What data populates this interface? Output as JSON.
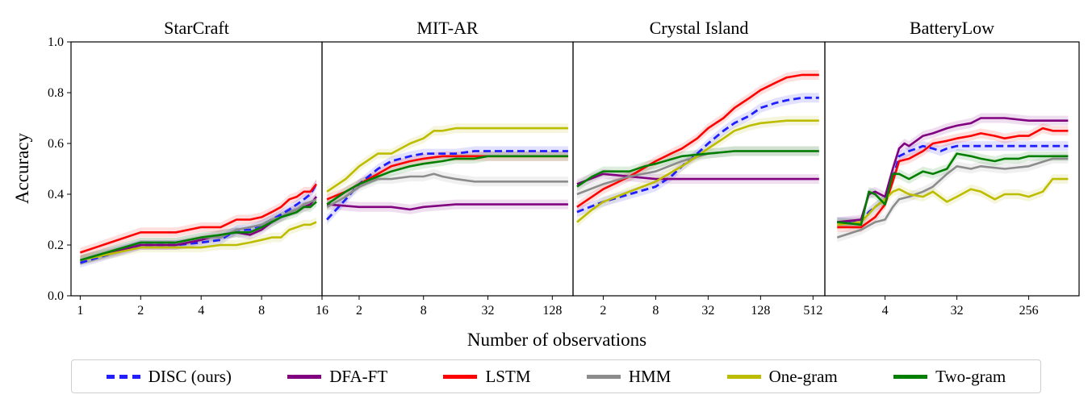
{
  "figure": {
    "xlabel": "Number of observations",
    "ylabel": "Accuracy"
  },
  "legend": {
    "items": [
      {
        "label": "DISC (ours)",
        "color": "#1f1fff",
        "dashed": true
      },
      {
        "label": "DFA-FT",
        "color": "#800080",
        "dashed": false
      },
      {
        "label": "LSTM",
        "color": "#ff0000",
        "dashed": false
      },
      {
        "label": "HMM",
        "color": "#8c8c8c",
        "dashed": false
      },
      {
        "label": "One-gram",
        "color": "#bdbd00",
        "dashed": false
      },
      {
        "label": "Two-gram",
        "color": "#007f00",
        "dashed": false
      }
    ]
  },
  "chart_data": [
    {
      "type": "line",
      "title": "StarCraft",
      "xscale": "log2",
      "xlim": [
        0.9,
        16
      ],
      "ylim": [
        0.0,
        1.0
      ],
      "xticks": [
        1,
        2,
        4,
        8,
        16
      ],
      "xticklabels": [
        "1",
        "2",
        "4",
        "8",
        "16"
      ],
      "yticks": [
        0.0,
        0.2,
        0.4,
        0.6,
        0.8,
        1.0
      ],
      "yticklabels": [
        "0.0",
        "0.2",
        "0.4",
        "0.6",
        "0.8",
        "1.0"
      ],
      "series": [
        {
          "name": "DISC (ours)",
          "x": [
            1,
            2,
            3,
            4,
            5,
            6,
            7,
            8,
            9,
            10,
            11,
            12,
            13,
            14,
            15
          ],
          "y": [
            0.13,
            0.2,
            0.2,
            0.21,
            0.22,
            0.26,
            0.26,
            0.28,
            0.3,
            0.32,
            0.34,
            0.36,
            0.38,
            0.4,
            0.44
          ]
        },
        {
          "name": "DFA-FT",
          "x": [
            1,
            2,
            3,
            4,
            5,
            6,
            7,
            8,
            9,
            10,
            11,
            12,
            13,
            14,
            15
          ],
          "y": [
            0.14,
            0.2,
            0.2,
            0.22,
            0.24,
            0.25,
            0.24,
            0.26,
            0.29,
            0.31,
            0.33,
            0.34,
            0.35,
            0.36,
            0.39
          ]
        },
        {
          "name": "LSTM",
          "x": [
            1,
            2,
            3,
            4,
            5,
            6,
            7,
            8,
            9,
            10,
            11,
            12,
            13,
            14,
            15
          ],
          "y": [
            0.17,
            0.25,
            0.25,
            0.27,
            0.27,
            0.3,
            0.3,
            0.31,
            0.33,
            0.35,
            0.38,
            0.39,
            0.41,
            0.41,
            0.44
          ]
        },
        {
          "name": "HMM",
          "x": [
            1,
            2,
            3,
            4,
            5,
            6,
            7,
            8,
            9,
            10,
            11,
            12,
            13,
            14,
            15
          ],
          "y": [
            0.14,
            0.21,
            0.21,
            0.23,
            0.23,
            0.26,
            0.27,
            0.28,
            0.3,
            0.31,
            0.33,
            0.34,
            0.36,
            0.37,
            0.38
          ]
        },
        {
          "name": "One-gram",
          "x": [
            1,
            2,
            3,
            4,
            5,
            6,
            7,
            8,
            9,
            10,
            11,
            12,
            13,
            14,
            15
          ],
          "y": [
            0.14,
            0.19,
            0.19,
            0.19,
            0.2,
            0.2,
            0.21,
            0.22,
            0.23,
            0.23,
            0.26,
            0.27,
            0.28,
            0.28,
            0.29
          ]
        },
        {
          "name": "Two-gram",
          "x": [
            1,
            2,
            3,
            4,
            5,
            6,
            7,
            8,
            9,
            10,
            11,
            12,
            13,
            14,
            15
          ],
          "y": [
            0.14,
            0.21,
            0.21,
            0.23,
            0.24,
            0.25,
            0.25,
            0.27,
            0.29,
            0.31,
            0.32,
            0.33,
            0.35,
            0.35,
            0.37
          ]
        }
      ]
    },
    {
      "type": "line",
      "title": "MIT-AR",
      "xscale": "log2",
      "xlim": [
        0.9,
        200
      ],
      "ylim": [
        0.0,
        1.0
      ],
      "xticks": [
        2,
        8,
        32,
        128
      ],
      "xticklabels": [
        "2",
        "8",
        "32",
        "128"
      ],
      "series": [
        {
          "name": "DISC (ours)",
          "x": [
            1,
            1.5,
            2,
            3,
            4,
            6,
            8,
            12,
            16,
            24,
            32,
            48,
            64,
            96,
            128,
            180
          ],
          "y": [
            0.3,
            0.38,
            0.44,
            0.5,
            0.53,
            0.55,
            0.56,
            0.56,
            0.56,
            0.57,
            0.57,
            0.57,
            0.57,
            0.57,
            0.57,
            0.57
          ]
        },
        {
          "name": "DFA-FT",
          "x": [
            1,
            2,
            4,
            6,
            8,
            16,
            32,
            64,
            128,
            180
          ],
          "y": [
            0.36,
            0.35,
            0.35,
            0.34,
            0.35,
            0.36,
            0.36,
            0.36,
            0.36,
            0.36
          ]
        },
        {
          "name": "LSTM",
          "x": [
            1,
            1.5,
            2,
            3,
            4,
            6,
            8,
            12,
            16,
            24,
            32,
            64,
            128,
            180
          ],
          "y": [
            0.38,
            0.41,
            0.44,
            0.48,
            0.51,
            0.53,
            0.54,
            0.55,
            0.55,
            0.55,
            0.55,
            0.55,
            0.55,
            0.55
          ]
        },
        {
          "name": "HMM",
          "x": [
            1,
            1.5,
            2,
            3,
            4,
            6,
            8,
            10,
            12,
            16,
            24,
            32,
            64,
            128,
            180
          ],
          "y": [
            0.35,
            0.39,
            0.43,
            0.46,
            0.46,
            0.47,
            0.47,
            0.48,
            0.47,
            0.46,
            0.45,
            0.45,
            0.45,
            0.45,
            0.45
          ]
        },
        {
          "name": "One-gram",
          "x": [
            1,
            1.5,
            2,
            3,
            4,
            6,
            8,
            10,
            12,
            16,
            24,
            32,
            64,
            128,
            180
          ],
          "y": [
            0.41,
            0.46,
            0.51,
            0.56,
            0.56,
            0.6,
            0.62,
            0.65,
            0.65,
            0.66,
            0.66,
            0.66,
            0.66,
            0.66,
            0.66
          ]
        },
        {
          "name": "Two-gram",
          "x": [
            1,
            1.5,
            2,
            3,
            4,
            6,
            8,
            12,
            16,
            24,
            32,
            64,
            128,
            180
          ],
          "y": [
            0.36,
            0.41,
            0.44,
            0.47,
            0.49,
            0.51,
            0.52,
            0.53,
            0.54,
            0.54,
            0.55,
            0.55,
            0.55,
            0.55
          ]
        }
      ]
    },
    {
      "type": "line",
      "title": "Crystal Island",
      "xscale": "log2",
      "xlim": [
        0.9,
        700
      ],
      "ylim": [
        0.0,
        1.0
      ],
      "xticks": [
        2,
        8,
        32,
        128,
        512
      ],
      "xticklabels": [
        "2",
        "8",
        "32",
        "128",
        "512"
      ],
      "series": [
        {
          "name": "DISC (ours)",
          "x": [
            1,
            2,
            4,
            8,
            12,
            16,
            24,
            32,
            48,
            64,
            96,
            128,
            192,
            256,
            384,
            600
          ],
          "y": [
            0.33,
            0.37,
            0.4,
            0.43,
            0.47,
            0.51,
            0.56,
            0.6,
            0.65,
            0.68,
            0.71,
            0.74,
            0.76,
            0.77,
            0.78,
            0.78
          ]
        },
        {
          "name": "DFA-FT",
          "x": [
            1,
            2,
            4,
            8,
            16,
            32,
            64,
            128,
            256,
            600
          ],
          "y": [
            0.44,
            0.48,
            0.47,
            0.46,
            0.46,
            0.46,
            0.46,
            0.46,
            0.46,
            0.46
          ]
        },
        {
          "name": "LSTM",
          "x": [
            1,
            2,
            4,
            8,
            12,
            16,
            24,
            32,
            48,
            64,
            96,
            128,
            192,
            256,
            384,
            600
          ],
          "y": [
            0.35,
            0.42,
            0.47,
            0.53,
            0.56,
            0.58,
            0.62,
            0.66,
            0.7,
            0.74,
            0.78,
            0.81,
            0.84,
            0.86,
            0.87,
            0.87
          ]
        },
        {
          "name": "HMM",
          "x": [
            1,
            2,
            4,
            8,
            16,
            32,
            64,
            128,
            256,
            600
          ],
          "y": [
            0.4,
            0.44,
            0.47,
            0.49,
            0.53,
            0.56,
            0.57,
            0.57,
            0.57,
            0.57
          ]
        },
        {
          "name": "One-gram",
          "x": [
            1,
            1.5,
            2,
            4,
            8,
            16,
            24,
            32,
            48,
            64,
            96,
            128,
            256,
            600
          ],
          "y": [
            0.29,
            0.34,
            0.37,
            0.41,
            0.45,
            0.51,
            0.55,
            0.58,
            0.62,
            0.65,
            0.67,
            0.68,
            0.69,
            0.69
          ]
        },
        {
          "name": "Two-gram",
          "x": [
            1,
            1.5,
            2,
            3,
            4,
            6,
            8,
            16,
            32,
            64,
            128,
            256,
            600
          ],
          "y": [
            0.43,
            0.47,
            0.49,
            0.49,
            0.49,
            0.51,
            0.52,
            0.55,
            0.56,
            0.57,
            0.57,
            0.57,
            0.57
          ]
        }
      ]
    },
    {
      "type": "line",
      "title": "BatteryLow",
      "xscale": "log2",
      "xlim": [
        0.7,
        1100
      ],
      "ylim": [
        0.0,
        1.0
      ],
      "xticks": [
        4,
        32,
        256
      ],
      "xticklabels": [
        "4",
        "32",
        "256"
      ],
      "series": [
        {
          "name": "DISC (ours)",
          "x": [
            1,
            2,
            2.5,
            3,
            4,
            5,
            6,
            7,
            8,
            10,
            12,
            16,
            20,
            24,
            32,
            48,
            64,
            128,
            256,
            512,
            800
          ],
          "y": [
            0.29,
            0.29,
            0.33,
            0.35,
            0.38,
            0.46,
            0.55,
            0.56,
            0.57,
            0.58,
            0.59,
            0.58,
            0.57,
            0.58,
            0.59,
            0.59,
            0.59,
            0.59,
            0.59,
            0.59,
            0.59
          ]
        },
        {
          "name": "DFA-FT",
          "x": [
            1,
            2,
            2.5,
            3,
            4,
            5,
            6,
            7,
            8,
            12,
            16,
            24,
            32,
            48,
            64,
            128,
            256,
            512,
            800
          ],
          "y": [
            0.29,
            0.3,
            0.4,
            0.41,
            0.39,
            0.5,
            0.58,
            0.6,
            0.59,
            0.63,
            0.64,
            0.66,
            0.67,
            0.68,
            0.7,
            0.7,
            0.69,
            0.69,
            0.69
          ]
        },
        {
          "name": "LSTM",
          "x": [
            1,
            2,
            3,
            4,
            5,
            6,
            8,
            12,
            16,
            24,
            32,
            48,
            64,
            96,
            128,
            192,
            256,
            384,
            512,
            800
          ],
          "y": [
            0.27,
            0.27,
            0.31,
            0.36,
            0.45,
            0.53,
            0.54,
            0.57,
            0.6,
            0.61,
            0.62,
            0.63,
            0.64,
            0.63,
            0.62,
            0.63,
            0.63,
            0.66,
            0.65,
            0.65
          ]
        },
        {
          "name": "HMM",
          "x": [
            1,
            2,
            3,
            4,
            5,
            6,
            8,
            12,
            16,
            24,
            32,
            48,
            64,
            128,
            256,
            512,
            800
          ],
          "y": [
            0.23,
            0.26,
            0.29,
            0.3,
            0.35,
            0.38,
            0.39,
            0.41,
            0.43,
            0.48,
            0.51,
            0.5,
            0.51,
            0.5,
            0.51,
            0.54,
            0.54
          ]
        },
        {
          "name": "One-gram",
          "x": [
            1,
            2,
            3,
            4,
            5,
            6,
            8,
            12,
            16,
            24,
            32,
            48,
            64,
            96,
            128,
            192,
            256,
            384,
            512,
            800
          ],
          "y": [
            0.28,
            0.29,
            0.35,
            0.38,
            0.41,
            0.42,
            0.4,
            0.39,
            0.41,
            0.37,
            0.39,
            0.42,
            0.41,
            0.38,
            0.4,
            0.4,
            0.39,
            0.41,
            0.46,
            0.46
          ]
        },
        {
          "name": "Two-gram",
          "x": [
            1,
            2,
            2.5,
            3,
            4,
            5,
            6,
            8,
            12,
            16,
            24,
            32,
            48,
            64,
            96,
            128,
            192,
            256,
            512,
            800
          ],
          "y": [
            0.29,
            0.28,
            0.41,
            0.4,
            0.36,
            0.48,
            0.48,
            0.46,
            0.49,
            0.48,
            0.5,
            0.56,
            0.55,
            0.54,
            0.53,
            0.54,
            0.54,
            0.55,
            0.55,
            0.55
          ]
        }
      ]
    }
  ]
}
